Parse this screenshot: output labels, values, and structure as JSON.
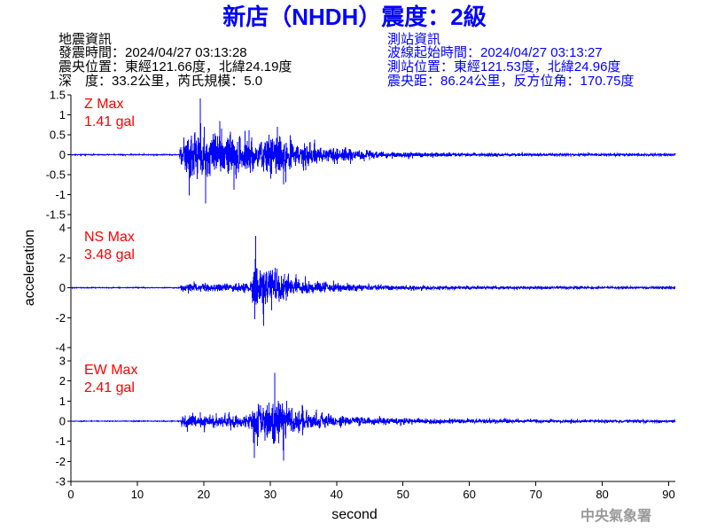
{
  "title": "新店（NHDH）震度：2級",
  "earthquake_info": {
    "heading": "地震資訊",
    "origin_time": "發震時間：2024/04/27 03:13:28",
    "epicenter": "震央位置：東經121.66度，北緯24.19度",
    "depth_magnitude": "深　度：33.2公里，芮氏規模：5.0"
  },
  "station_info": {
    "heading": "測站資訊",
    "waveform_start": "波線起始時間：2024/04/27 03:13:27",
    "location": "測站位置：東經121.53度，北緯24.96度",
    "distance_azimuth": "震央距：86.24公里，反方位角：170.75度"
  },
  "credit": "中央氣象署",
  "colors": {
    "title": "#0000ff",
    "earthquake_info": "#000000",
    "station_info": "#0000ff",
    "max_label": "#ff0000",
    "trace": "#0000ff",
    "credit": "#999999"
  },
  "chart_data": {
    "type": "line",
    "xlabel": "second",
    "ylabel": "acceleration",
    "xlim": [
      0,
      91
    ],
    "xticks": [
      0,
      10,
      20,
      30,
      40,
      50,
      60,
      70,
      80,
      90
    ],
    "grid": false,
    "series": [
      {
        "name": "Z Max",
        "max_label": "1.41 gal",
        "ylim": [
          -1.5,
          1.5
        ],
        "yticks": [
          1.5,
          1,
          0.5,
          0,
          -0.5,
          -1,
          -1.5
        ],
        "amplitude_envelope": [
          [
            0,
            0.02
          ],
          [
            16.3,
            0.02
          ],
          [
            16.45,
            0.75
          ],
          [
            17.5,
            0.95
          ],
          [
            19,
            1.15
          ],
          [
            20.5,
            1.15
          ],
          [
            22,
            1.05
          ],
          [
            24,
            0.95
          ],
          [
            26,
            0.85
          ],
          [
            28,
            0.85
          ],
          [
            30,
            0.95
          ],
          [
            32,
            0.8
          ],
          [
            34,
            0.6
          ],
          [
            36,
            0.48
          ],
          [
            38,
            0.4
          ],
          [
            40,
            0.32
          ],
          [
            43,
            0.23
          ],
          [
            46,
            0.17
          ],
          [
            50,
            0.12
          ],
          [
            55,
            0.09
          ],
          [
            60,
            0.07
          ],
          [
            70,
            0.055
          ],
          [
            91,
            0.05
          ]
        ],
        "extremes": [
          [
            19.5,
            1.41
          ],
          [
            20.3,
            -1.22
          ],
          [
            17.8,
            -1.02
          ]
        ]
      },
      {
        "name": "NS Max",
        "max_label": "3.48 gal",
        "ylim": [
          -4,
          4
        ],
        "yticks": [
          4,
          2,
          0,
          -2,
          -4
        ],
        "amplitude_envelope": [
          [
            0,
            0.04
          ],
          [
            16.5,
            0.04
          ],
          [
            16.65,
            0.55
          ],
          [
            18,
            0.55
          ],
          [
            22,
            0.5
          ],
          [
            26,
            0.55
          ],
          [
            27.2,
            0.75
          ],
          [
            27.5,
            2.6
          ],
          [
            28.6,
            2.7
          ],
          [
            29.5,
            2.3
          ],
          [
            31,
            1.9
          ],
          [
            32.5,
            1.5
          ],
          [
            34,
            1.1
          ],
          [
            36,
            0.8
          ],
          [
            38,
            0.62
          ],
          [
            41,
            0.45
          ],
          [
            45,
            0.33
          ],
          [
            50,
            0.26
          ],
          [
            55,
            0.21
          ],
          [
            65,
            0.16
          ],
          [
            80,
            0.13
          ],
          [
            91,
            0.12
          ]
        ],
        "extremes": [
          [
            27.8,
            3.48
          ],
          [
            29.0,
            -2.55
          ],
          [
            27.7,
            -2.1
          ]
        ]
      },
      {
        "name": "EW Max",
        "max_label": "2.41 gal",
        "ylim": [
          -3,
          3
        ],
        "yticks": [
          3,
          2,
          1,
          0,
          -1,
          -2,
          -3
        ],
        "amplitude_envelope": [
          [
            0,
            0.03
          ],
          [
            16.5,
            0.03
          ],
          [
            16.65,
            0.6
          ],
          [
            18,
            0.7
          ],
          [
            20,
            0.62
          ],
          [
            23,
            0.55
          ],
          [
            26,
            0.6
          ],
          [
            27.2,
            0.85
          ],
          [
            27.5,
            1.7
          ],
          [
            29,
            1.85
          ],
          [
            30.5,
            2.0
          ],
          [
            32,
            1.65
          ],
          [
            33.5,
            1.2
          ],
          [
            35,
            0.9
          ],
          [
            37,
            0.7
          ],
          [
            40,
            0.5
          ],
          [
            44,
            0.36
          ],
          [
            50,
            0.26
          ],
          [
            55,
            0.2
          ],
          [
            65,
            0.15
          ],
          [
            80,
            0.12
          ],
          [
            91,
            0.11
          ]
        ],
        "extremes": [
          [
            30.7,
            2.41
          ],
          [
            32.0,
            -1.96
          ],
          [
            27.6,
            -1.82
          ]
        ]
      }
    ]
  }
}
